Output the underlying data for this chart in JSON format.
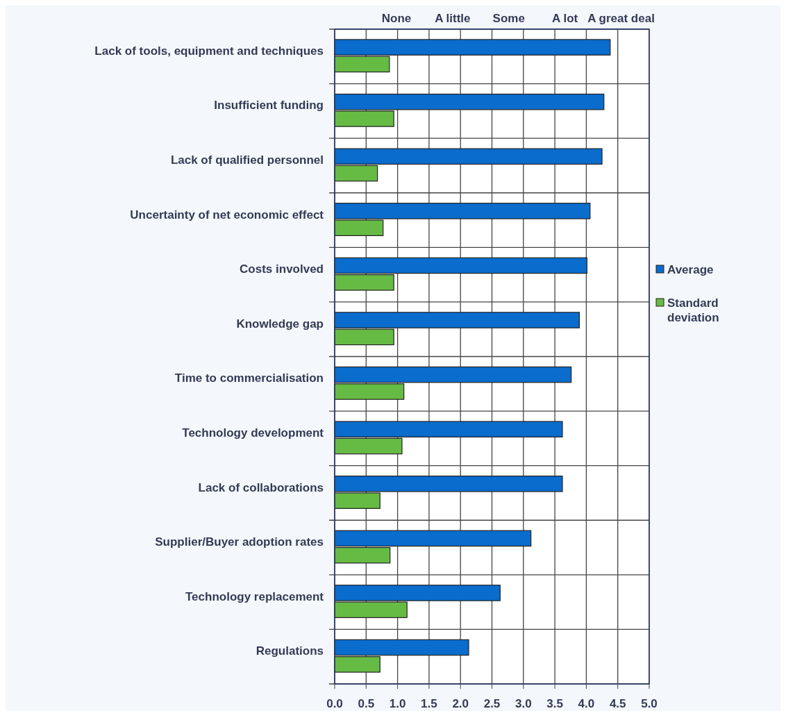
{
  "chart_data": {
    "type": "bar",
    "orientation": "horizontal",
    "categories": [
      "Lack of tools, equipment and techniques",
      "Insufficient funding",
      "Lack of qualified personnel",
      "Uncertainty of net economic effect",
      "Costs involved",
      "Knowledge gap",
      "Time to commercialisation",
      "Technology development",
      "Lack of collaborations",
      "Supplier/Buyer adoption rates",
      "Technology replacement",
      "Regulations"
    ],
    "series": [
      {
        "name": "Average",
        "color": "#0a6ccc",
        "values": [
          4.38,
          4.28,
          4.25,
          4.06,
          4.01,
          3.89,
          3.76,
          3.62,
          3.62,
          3.12,
          2.63,
          2.13
        ]
      },
      {
        "name": "Standard deviation",
        "color": "#66bb44",
        "values": [
          0.87,
          0.94,
          0.68,
          0.77,
          0.94,
          0.94,
          1.1,
          1.07,
          0.72,
          0.88,
          1.15,
          0.72
        ]
      }
    ],
    "xlim": [
      0,
      5
    ],
    "xticks": [
      {
        "value": 0,
        "label": "0.0"
      },
      0.5,
      {
        "value": 1,
        "label": "1.0"
      },
      1.5,
      {
        "value": 2,
        "label": "2.0"
      },
      2.5,
      {
        "value": 3,
        "label": "3.0"
      },
      3.5,
      {
        "value": 4,
        "label": "4.0"
      },
      4.5,
      {
        "value": 5,
        "label": "5.0"
      }
    ],
    "annotations": [
      "None",
      "A little",
      "Some",
      "A lot",
      "A great deal"
    ],
    "grid": true,
    "legend": "right"
  }
}
